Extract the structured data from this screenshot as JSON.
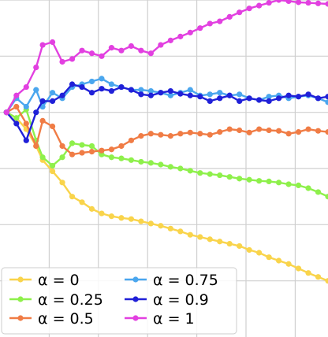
{
  "chart_data": {
    "type": "line",
    "title": "",
    "xlabel": "",
    "ylabel": "",
    "grid": true,
    "legend_placement": "lower-left",
    "legend_columns": 2,
    "xlim": [
      0,
      100
    ],
    "ylim": [
      -4.0,
      2.0
    ],
    "x_gridlines": [
      15,
      30,
      45,
      60,
      75,
      90
    ],
    "y_gridlines": [
      -3.0,
      -2.0,
      -1.0,
      0.0,
      1.0,
      2.0
    ],
    "series": [
      {
        "name": "α = 0",
        "color": "#f9d44b",
        "x": [
          2,
          5,
          8,
          11,
          13,
          16,
          19,
          22,
          25,
          28,
          31,
          34,
          37,
          40,
          43,
          46,
          49,
          52,
          55,
          58,
          61,
          64,
          67,
          70,
          73,
          76,
          79,
          82,
          85,
          88,
          91,
          94,
          97,
          100
        ],
        "y": [
          0.0,
          -0.1,
          -0.3,
          -0.6,
          -0.85,
          -1.05,
          -1.25,
          -1.5,
          -1.6,
          -1.72,
          -1.8,
          -1.85,
          -1.88,
          -1.9,
          -1.94,
          -1.98,
          -2.02,
          -2.07,
          -2.12,
          -2.18,
          -2.22,
          -2.26,
          -2.3,
          -2.34,
          -2.38,
          -2.45,
          -2.5,
          -2.58,
          -2.64,
          -2.7,
          -2.78,
          -2.86,
          -2.93,
          -3.0
        ]
      },
      {
        "name": "α = 0.25",
        "color": "#8ef04b",
        "x": [
          2,
          5,
          8,
          11,
          13,
          16,
          19,
          22,
          25,
          28,
          31,
          34,
          37,
          40,
          43,
          46,
          49,
          52,
          55,
          58,
          61,
          64,
          67,
          70,
          73,
          76,
          79,
          82,
          85,
          88,
          91,
          94,
          97,
          100
        ],
        "y": [
          0.0,
          -0.1,
          0.05,
          -0.5,
          -0.8,
          -0.95,
          -0.8,
          -0.55,
          -0.58,
          -0.6,
          -0.75,
          -0.8,
          -0.82,
          -0.85,
          -0.88,
          -0.9,
          -0.93,
          -0.97,
          -1.0,
          -1.04,
          -1.08,
          -1.1,
          -1.12,
          -1.15,
          -1.18,
          -1.2,
          -1.22,
          -1.23,
          -1.25,
          -1.28,
          -1.3,
          -1.35,
          -1.42,
          -1.5
        ]
      },
      {
        "name": "α = 0.5",
        "color": "#f07c45",
        "x": [
          2,
          5,
          8,
          11,
          13,
          16,
          19,
          22,
          25,
          28,
          31,
          34,
          37,
          40,
          43,
          46,
          49,
          52,
          55,
          58,
          61,
          64,
          67,
          70,
          73,
          76,
          79,
          82,
          85,
          88,
          91,
          94,
          97,
          100
        ],
        "y": [
          0.0,
          0.1,
          -0.2,
          -0.6,
          -0.15,
          -0.25,
          -0.6,
          -0.75,
          -0.72,
          -0.7,
          -0.68,
          -0.66,
          -0.6,
          -0.5,
          -0.42,
          -0.38,
          -0.4,
          -0.42,
          -0.38,
          -0.36,
          -0.38,
          -0.4,
          -0.35,
          -0.3,
          -0.32,
          -0.36,
          -0.3,
          -0.32,
          -0.33,
          -0.38,
          -0.35,
          -0.3,
          -0.33,
          -0.35
        ]
      },
      {
        "name": "α = 0.75",
        "color": "#4aa6ee",
        "x": [
          2,
          5,
          8,
          11,
          13,
          16,
          19,
          22,
          25,
          28,
          31,
          34,
          37,
          40,
          43,
          46,
          49,
          52,
          55,
          58,
          61,
          64,
          67,
          70,
          73,
          76,
          79,
          82,
          85,
          88,
          91,
          94,
          97,
          100
        ],
        "y": [
          0.0,
          0.25,
          0.1,
          0.4,
          0.1,
          0.35,
          0.25,
          0.45,
          0.5,
          0.55,
          0.6,
          0.5,
          0.45,
          0.4,
          0.4,
          0.38,
          0.35,
          0.3,
          0.35,
          0.4,
          0.3,
          0.32,
          0.35,
          0.3,
          0.32,
          0.25,
          0.22,
          0.28,
          0.3,
          0.25,
          0.28,
          0.3,
          0.25,
          0.18
        ]
      },
      {
        "name": "α = 0.9",
        "color": "#2020d8",
        "x": [
          2,
          5,
          8,
          11,
          13,
          16,
          19,
          22,
          25,
          28,
          31,
          34,
          37,
          40,
          43,
          46,
          49,
          52,
          55,
          58,
          61,
          64,
          67,
          70,
          73,
          76,
          79,
          82,
          85,
          88,
          91,
          94,
          97,
          100
        ],
        "y": [
          0.0,
          -0.2,
          -0.5,
          0.0,
          0.2,
          0.2,
          0.3,
          0.5,
          0.45,
          0.35,
          0.42,
          0.38,
          0.45,
          0.4,
          0.32,
          0.3,
          0.35,
          0.38,
          0.33,
          0.3,
          0.28,
          0.2,
          0.25,
          0.3,
          0.2,
          0.25,
          0.22,
          0.2,
          0.25,
          0.3,
          0.28,
          0.32,
          0.25,
          0.28
        ]
      },
      {
        "name": "α = 1",
        "color": "#e240e0",
        "x": [
          2,
          5,
          8,
          11,
          13,
          16,
          19,
          22,
          25,
          28,
          31,
          34,
          37,
          40,
          43,
          46,
          49,
          52,
          55,
          58,
          61,
          64,
          67,
          70,
          73,
          76,
          79,
          82,
          85,
          88,
          91,
          94,
          97,
          100
        ],
        "y": [
          0.0,
          0.3,
          0.45,
          0.8,
          1.2,
          1.25,
          0.9,
          0.95,
          1.1,
          1.05,
          1.0,
          1.15,
          1.1,
          1.18,
          1.1,
          1.05,
          1.2,
          1.28,
          1.35,
          1.42,
          1.5,
          1.58,
          1.62,
          1.7,
          1.78,
          1.85,
          1.9,
          1.95,
          2.0,
          1.98,
          1.96,
          1.95,
          1.94,
          1.93
        ]
      }
    ]
  }
}
